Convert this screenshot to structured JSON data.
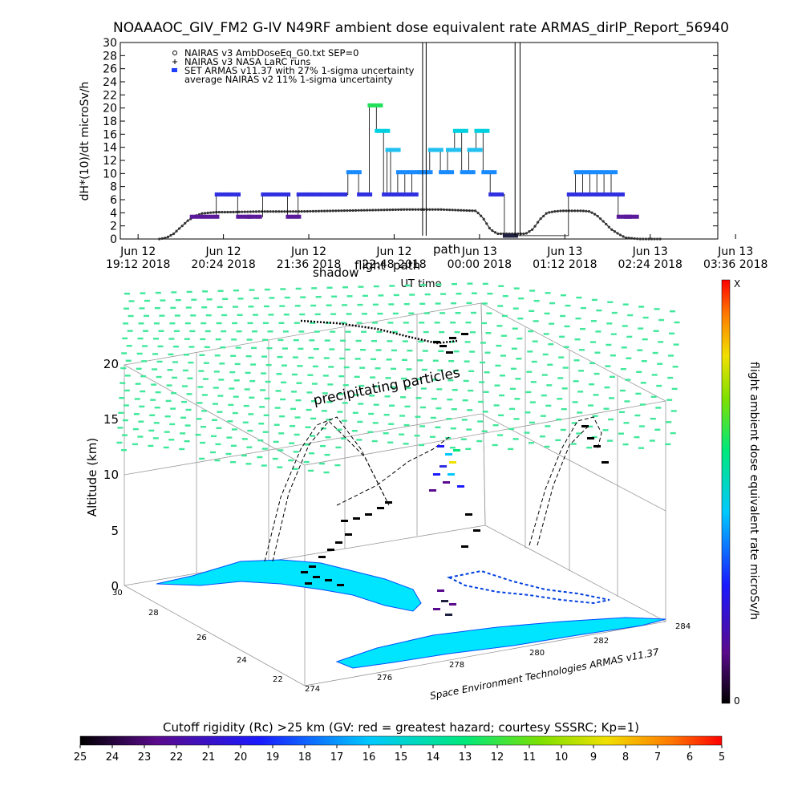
{
  "title": "NOAAAOC_GIV_FM2 G-IV   N49RF  ambient dose equivalent rate ARMAS_dirIP_Report_56940",
  "top_chart": {
    "legend": [
      {
        "symbol": "diamond",
        "text": "NAIRAS v3 AmbDoseEq_G0.txt SEP=0"
      },
      {
        "symbol": "plus",
        "text": "NAIRAS v3 NASA LaRC runs"
      },
      {
        "symbol": "blue-square",
        "text": "SET ARMAS v11.37 with 27% 1-sigma uncertainty"
      },
      {
        "symbol": "none",
        "text": "average NAIRAS v2 11% 1-sigma uncertainty"
      }
    ],
    "ylabel": "dH*(10)/dt microSv/h",
    "xlabel": "UT time",
    "annotations": [
      "shadow",
      "path",
      "flight",
      "path"
    ]
  },
  "chart_data": [
    {
      "type": "scatter",
      "xlabel": "UT time",
      "ylabel": "dH*(10)/dt microSv/h",
      "ylim": [
        0,
        30
      ],
      "yticks": [
        "0",
        "2",
        "4",
        "6",
        "8",
        "10",
        "12",
        "14",
        "16",
        "18",
        "20",
        "22",
        "24",
        "26",
        "28",
        "30"
      ],
      "xticks": [
        {
          "line1": "Jun 12",
          "line2": "19:12 2018"
        },
        {
          "line1": "Jun 12",
          "line2": "20:24 2018"
        },
        {
          "line1": "Jun 12",
          "line2": "21:36 2018"
        },
        {
          "line1": "Jun 12",
          "line2": "22:48 2018"
        },
        {
          "line1": "Jun 13",
          "line2": "00:00 2018"
        },
        {
          "line1": "Jun 13",
          "line2": "01:12 2018"
        },
        {
          "line1": "Jun 13",
          "line2": "02:24 2018"
        },
        {
          "line1": "Jun 13",
          "line2": "03:36 2018"
        }
      ],
      "x_hours_range": [
        0,
        8.4
      ],
      "series": [
        {
          "name": "NAIRAS v3 AmbDoseEq_G0.txt SEP=0",
          "x": [
            0.55,
            0.65,
            0.75,
            0.85,
            0.95,
            1.05,
            1.15,
            1.25,
            1.35,
            1.5,
            2.0,
            2.5,
            3.0,
            3.5,
            4.0,
            4.5,
            5.0,
            5.1,
            5.2,
            5.3,
            5.4,
            5.5,
            5.6,
            5.7,
            5.8,
            5.9,
            6.0,
            6.1,
            6.2,
            6.3,
            6.4,
            6.5,
            6.6,
            6.7,
            6.8,
            6.9,
            7.0,
            7.1,
            7.2,
            7.3,
            7.4,
            7.5,
            7.6
          ],
          "y": [
            0,
            0.2,
            0.8,
            1.8,
            2.8,
            3.5,
            3.9,
            4.0,
            4.1,
            4.1,
            4.2,
            4.2,
            4.3,
            4.4,
            4.5,
            4.5,
            4.3,
            3.2,
            1.5,
            0.8,
            0.8,
            0.8,
            0.8,
            0.8,
            1.5,
            3.0,
            4.0,
            4.2,
            4.3,
            4.3,
            4.3,
            4.3,
            4.2,
            3.6,
            2.6,
            1.5,
            0.8,
            0.2,
            0.1,
            0,
            0,
            0,
            0
          ]
        },
        {
          "name": "SET ARMAS v11.37 with 27% 1-sigma uncertainty",
          "x": [
            1.0,
            1.2,
            1.35,
            1.5,
            1.65,
            1.8,
            2.0,
            2.2,
            2.35,
            2.5,
            2.65,
            2.8,
            3.0,
            3.2,
            3.35,
            3.5,
            3.6,
            3.7,
            3.75,
            3.8,
            3.9,
            4.0,
            4.1,
            4.2,
            4.35,
            4.5,
            4.6,
            4.7,
            4.8,
            4.9,
            5.0,
            5.1,
            5.2,
            5.4,
            6.3,
            6.4,
            6.5,
            6.6,
            6.7,
            6.8,
            6.9,
            7.0,
            7.1
          ],
          "y": [
            3.4,
            3.4,
            6.8,
            6.8,
            3.4,
            3.4,
            6.8,
            6.8,
            3.4,
            6.8,
            6.8,
            6.8,
            6.8,
            10.2,
            6.8,
            20.4,
            16.5,
            6.8,
            13.6,
            6.8,
            10.2,
            6.8,
            10.2,
            10.2,
            13.6,
            10.2,
            13.6,
            16.5,
            10.2,
            13.6,
            16.5,
            10.2,
            6.8,
            0.5,
            6.8,
            10.2,
            6.8,
            10.2,
            6.8,
            10.2,
            6.8,
            3.4,
            3.4
          ]
        }
      ]
    },
    {
      "type": "scatter",
      "ylabel": "Altitude (km)",
      "zticks": [
        "0",
        "5",
        "10",
        "15",
        "20"
      ],
      "lat_ticks": [
        "30",
        "28",
        "26",
        "24",
        "22"
      ],
      "lon_ticks": [
        "274",
        "276",
        "278",
        "280",
        "282",
        "284"
      ],
      "annotation": "precipitating particles",
      "credit": "Space Environment Technologies ARMAS v11.37"
    }
  ],
  "colorbar_right": {
    "label": "flight ambient dose equivalent rate microSv/h",
    "top_label": "X",
    "bottom_label": "0"
  },
  "colorbar_bottom": {
    "title": "Cutoff rigidity (Rc) >25 km (GV: red = greatest hazard; courtesy SSSRC; Kp=1)",
    "ticks": [
      "25",
      "24",
      "23",
      "22",
      "21",
      "20",
      "19",
      "18",
      "17",
      "16",
      "15",
      "14",
      "13",
      "12",
      "11",
      "10",
      "9",
      "8",
      "7",
      "6",
      "5"
    ]
  }
}
